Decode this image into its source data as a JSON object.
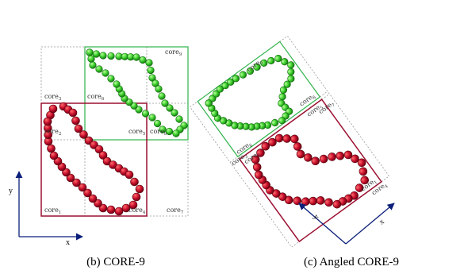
{
  "colors": {
    "red": "#c8102e",
    "red_dark": "#7a0010",
    "red_box": "#9b1030",
    "green": "#33cc33",
    "green_dark": "#107010",
    "green_box": "#2fb34a",
    "axis": "#0b1f7a",
    "grid": "#999999"
  },
  "left": {
    "caption": "(b) CORE-9",
    "core_labels": [
      "core",
      "core",
      "core",
      "core",
      "core",
      "core",
      "core",
      "core",
      "core"
    ],
    "core_subs": [
      "1",
      "2",
      "3",
      "4",
      "5",
      "6",
      "7",
      "8",
      "9"
    ],
    "axis_x": "x",
    "axis_y": "y"
  },
  "right": {
    "caption": "(c) Angled CORE-9",
    "core_labels": [
      "core",
      "core",
      "core",
      "core",
      "core",
      "core",
      "core",
      "core",
      "core"
    ],
    "core_subs": [
      "1",
      "2",
      "3",
      "4",
      "5",
      "6",
      "7",
      "8",
      "9"
    ],
    "axis_x": "x",
    "axis_y": "y"
  }
}
